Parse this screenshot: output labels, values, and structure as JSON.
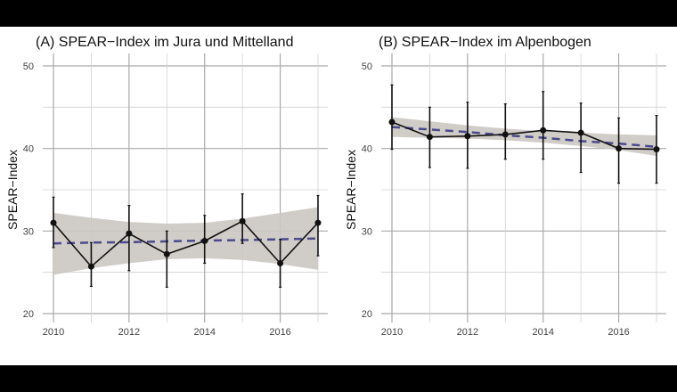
{
  "chart_data": [
    {
      "type": "line",
      "title": "(A) SPEAR−Index im Jura und Mittelland",
      "xlabel": "",
      "ylabel": "SPEAR−Index",
      "x": [
        2010,
        2011,
        2012,
        2013,
        2014,
        2015,
        2016,
        2017
      ],
      "xticks": [
        "2010",
        "2012",
        "2014",
        "2016"
      ],
      "yticks": [
        "20",
        "30",
        "40",
        "50"
      ],
      "ylim": [
        20,
        50
      ],
      "grid": true,
      "series": [
        {
          "values": [
            31.0,
            25.7,
            29.7,
            27.2,
            28.8,
            31.2,
            26.1,
            31.0
          ],
          "err_low": [
            28.0,
            23.3,
            25.2,
            23.2,
            26.1,
            28.5,
            23.2,
            27.0
          ],
          "err_high": [
            34.1,
            28.6,
            33.1,
            30.0,
            31.9,
            34.5,
            29.0,
            34.3
          ]
        }
      ],
      "trend": [
        28.5,
        28.6,
        28.65,
        28.75,
        28.85,
        28.9,
        29.0,
        29.1
      ],
      "band_low": [
        24.7,
        25.5,
        26.1,
        26.6,
        26.7,
        26.5,
        26.0,
        25.3
      ],
      "band_high": [
        32.2,
        31.6,
        31.1,
        30.9,
        31.0,
        31.5,
        32.2,
        32.9
      ],
      "colors": {
        "line": "#111111",
        "trend": "#4b4a8c",
        "band": "#cbc6c2"
      }
    },
    {
      "type": "line",
      "title": "(B) SPEAR−Index im Alpenbogen",
      "xlabel": "",
      "ylabel": "SPEAR−Index",
      "x": [
        2010,
        2011,
        2012,
        2013,
        2014,
        2015,
        2016,
        2017
      ],
      "xticks": [
        "2010",
        "2012",
        "2014",
        "2016"
      ],
      "yticks": [
        "20",
        "30",
        "40",
        "50"
      ],
      "ylim": [
        20,
        50
      ],
      "grid": true,
      "series": [
        {
          "values": [
            43.2,
            41.4,
            41.5,
            41.7,
            42.2,
            41.9,
            40.0,
            39.9
          ],
          "err_low": [
            39.9,
            37.7,
            37.6,
            38.7,
            38.7,
            37.1,
            35.8,
            35.8
          ],
          "err_high": [
            47.7,
            45.0,
            45.6,
            45.4,
            46.9,
            45.5,
            43.7,
            44.0
          ]
        }
      ],
      "trend": [
        42.6,
        42.3,
        42.0,
        41.6,
        41.3,
        40.9,
        40.6,
        40.2
      ],
      "band_low": [
        41.4,
        41.3,
        41.2,
        41.0,
        40.7,
        40.3,
        39.8,
        39.1
      ],
      "band_high": [
        43.8,
        43.3,
        42.8,
        42.4,
        42.1,
        41.9,
        41.7,
        41.6
      ],
      "colors": {
        "line": "#111111",
        "trend": "#4b4a8c",
        "band": "#cbc6c2"
      }
    }
  ]
}
